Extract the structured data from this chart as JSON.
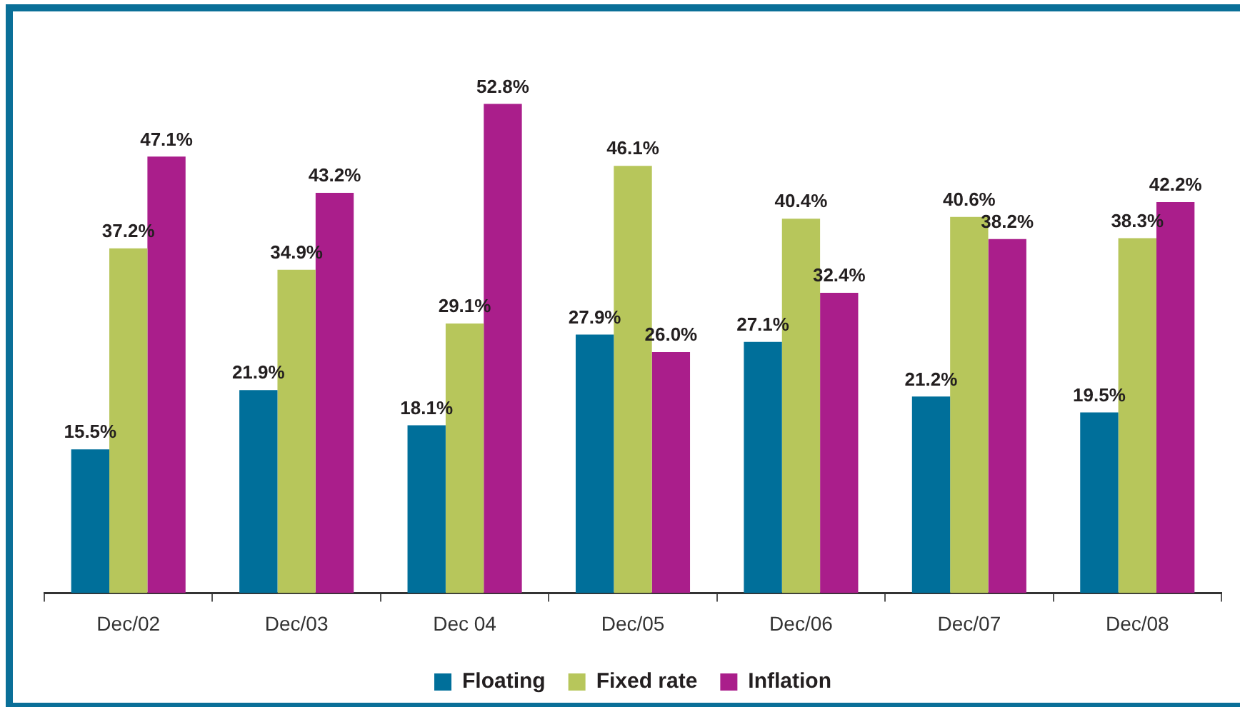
{
  "chart_data": {
    "type": "bar",
    "categories": [
      "Dec/02",
      "Dec/03",
      "Dec 04",
      "Dec/05",
      "Dec/06",
      "Dec/07",
      "Dec/08"
    ],
    "series": [
      {
        "name": "Floating",
        "color": "#006f9a",
        "values": [
          15.5,
          21.9,
          18.1,
          27.9,
          27.1,
          21.2,
          19.5
        ],
        "value_labels": [
          "15.5%",
          "21.9%",
          "18.1%",
          "27.9%",
          "27.1%",
          "21.2%",
          "19.5%"
        ]
      },
      {
        "name": "Fixed rate",
        "color": "#b7c65b",
        "values": [
          37.2,
          34.9,
          29.1,
          46.1,
          40.4,
          40.6,
          38.3
        ],
        "value_labels": [
          "37.2%",
          "34.9%",
          "29.1%",
          "46.1%",
          "40.4%",
          "40.6%",
          "38.3%"
        ]
      },
      {
        "name": "Inflation",
        "color": "#aa1e8b",
        "values": [
          47.1,
          43.2,
          52.8,
          26.0,
          32.4,
          38.2,
          42.2
        ],
        "value_labels": [
          "47.1%",
          "43.2%",
          "52.8%",
          "26.0%",
          "32.4%",
          "38.2%",
          "42.2%"
        ]
      }
    ],
    "legend": "bottom",
    "grid": false,
    "tick_labels": "x"
  }
}
